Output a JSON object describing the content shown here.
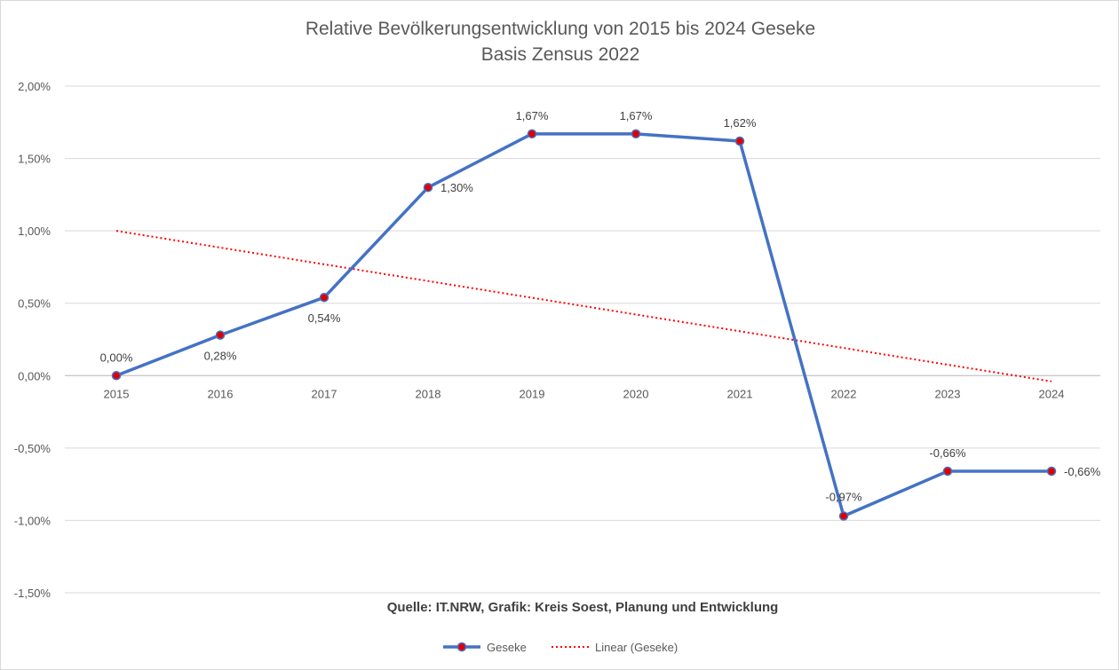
{
  "chart_data": {
    "type": "line",
    "title": "Relative Bevölkerungsentwicklung von 2015 bis 2024 Geseke",
    "subtitle": "Basis Zensus 2022",
    "categories": [
      "2015",
      "2016",
      "2017",
      "2018",
      "2019",
      "2020",
      "2021",
      "2022",
      "2023",
      "2024"
    ],
    "series": [
      {
        "name": "Geseke",
        "values": [
          0.0,
          0.28,
          0.54,
          1.3,
          1.67,
          1.67,
          1.62,
          -0.97,
          -0.66,
          -0.66
        ],
        "labels": [
          "0,00%",
          "0,28%",
          "0,54%",
          "1,30%",
          "1,67%",
          "1,67%",
          "1,62%",
          "-0,97%",
          "-0,66%",
          "-0,66%"
        ],
        "color": "#4472c4",
        "marker_color": "#e00000"
      }
    ],
    "trendline": {
      "name": "Linear (Geseke)",
      "type": "linear",
      "start": 1.0,
      "end": -0.04,
      "color": "#ff0000",
      "style": "dotted"
    },
    "ylim": [
      -1.5,
      2.0
    ],
    "yticks": [
      2.0,
      1.5,
      1.0,
      0.5,
      0.0,
      -0.5,
      -1.0,
      -1.5
    ],
    "ytick_labels": [
      "2,00%",
      "1,50%",
      "1,00%",
      "0,50%",
      "0,00%",
      "-0,50%",
      "-1,00%",
      "-1,50%"
    ],
    "grid": true,
    "legend_position": "bottom",
    "source_note": "Quelle: IT.NRW, Grafik: Kreis Soest, Planung und Entwicklung"
  }
}
